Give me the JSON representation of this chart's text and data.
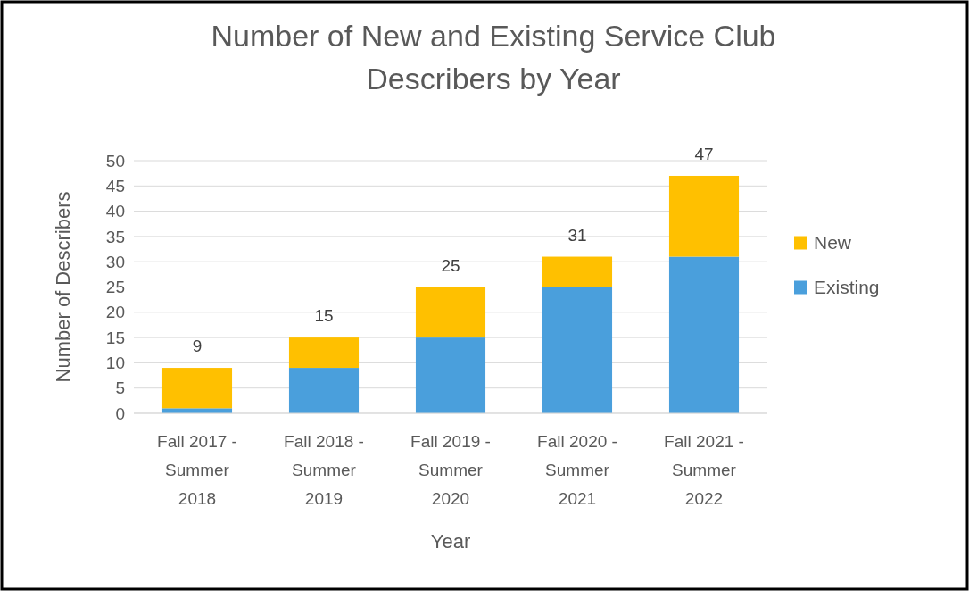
{
  "chart_data": {
    "type": "bar",
    "title": "Number of New and Existing Service Club Describers by Year",
    "xlabel": "Year",
    "ylabel": "Number of Describers",
    "categories": [
      "Fall 2017 - Summer 2018",
      "Fall 2018 - Summer 2019",
      "Fall 2019 - Summer 2020",
      "Fall 2020 - Summer 2021",
      "Fall 2021 - Summer 2022"
    ],
    "series": [
      {
        "name": "Existing",
        "color": "#4a9fdc",
        "values": [
          1,
          9,
          15,
          25,
          31
        ]
      },
      {
        "name": "New",
        "color": "#ffc000",
        "values": [
          8,
          6,
          10,
          6,
          16
        ]
      }
    ],
    "stacked": true,
    "totals": [
      "9",
      "15",
      "25",
      "31",
      "47"
    ],
    "ylim": [
      0,
      50
    ],
    "yticks": [
      0,
      5,
      10,
      15,
      20,
      25,
      30,
      35,
      40,
      45,
      50
    ],
    "grid": "y",
    "legend": "right"
  }
}
